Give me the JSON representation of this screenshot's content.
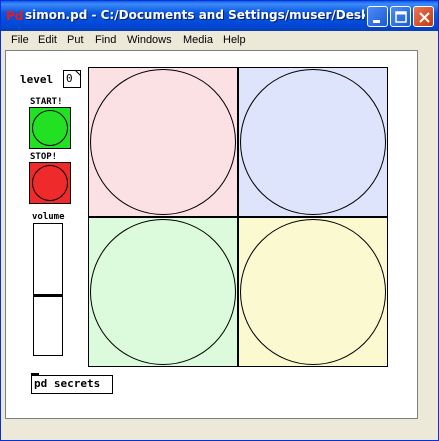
{
  "window": {
    "title": "simon.pd  - C:/Documents and Settings/muser/Desktop",
    "logo": "Pd"
  },
  "menu": {
    "items": [
      "File",
      "Edit",
      "Put",
      "Find",
      "Windows",
      "Media",
      "Help"
    ]
  },
  "patch": {
    "level_label": "level",
    "level_value": "0",
    "start_label": "START!",
    "stop_label": "STOP!",
    "volume_label": "volume",
    "volume_level": 0.45,
    "object_text": "pd secrets",
    "colors": {
      "start": "#22e022",
      "stop": "#ee2a2a",
      "quad_top_left": "#fbe0e4",
      "quad_top_right": "#dde4fb",
      "quad_bottom_left": "#dcfbdc",
      "quad_bottom_right": "#fbf9d0"
    }
  }
}
